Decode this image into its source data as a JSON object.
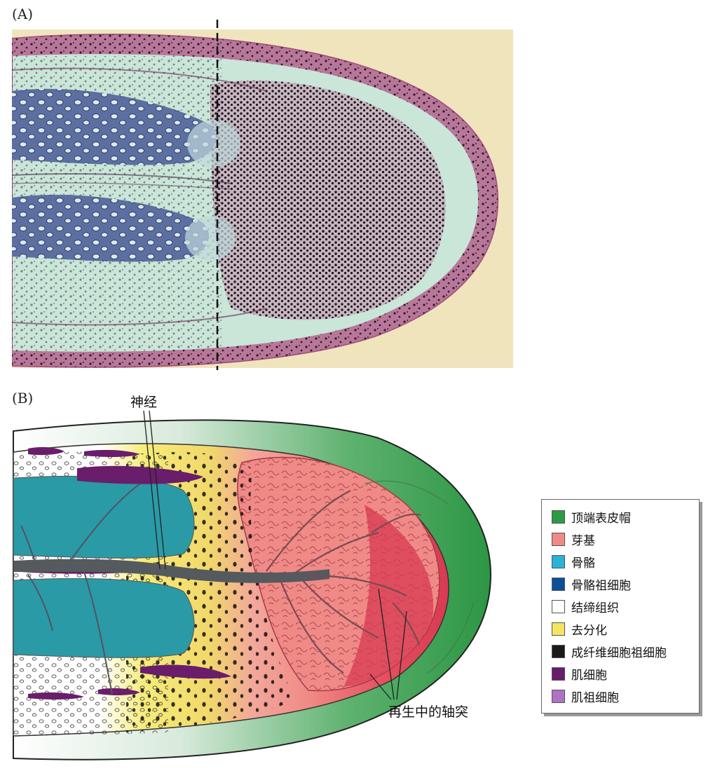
{
  "panels": {
    "a_label": "(A)",
    "b_label": "(B)"
  },
  "annotations": {
    "nerve": "神经",
    "regenerating_axons": "再生中的轴突"
  },
  "legend": {
    "items": [
      {
        "label": "顶端表皮帽",
        "color": "#2f9a45"
      },
      {
        "label": "芽基",
        "color": "#f08a86"
      },
      {
        "label": "骨骼",
        "color": "#2ab3d6"
      },
      {
        "label": "骨骼祖细胞",
        "color": "#0c4f98"
      },
      {
        "label": "结缔组织",
        "color": "#ffffff"
      },
      {
        "label": "去分化",
        "color": "#f3e561"
      },
      {
        "label": "成纤维细胞祖细胞",
        "color": "#1a1a1a"
      },
      {
        "label": "肌细胞",
        "color": "#6a1d6a"
      },
      {
        "label": "肌祖细胞",
        "color": "#b072c4"
      }
    ]
  },
  "colors": {
    "histology_background": "#f0e4bd",
    "cartilage": "#5b6fa0",
    "epidermis": "#b5638e",
    "skeleton_teal": "#2a9aa6",
    "nerve_gray": "#555a5f"
  }
}
